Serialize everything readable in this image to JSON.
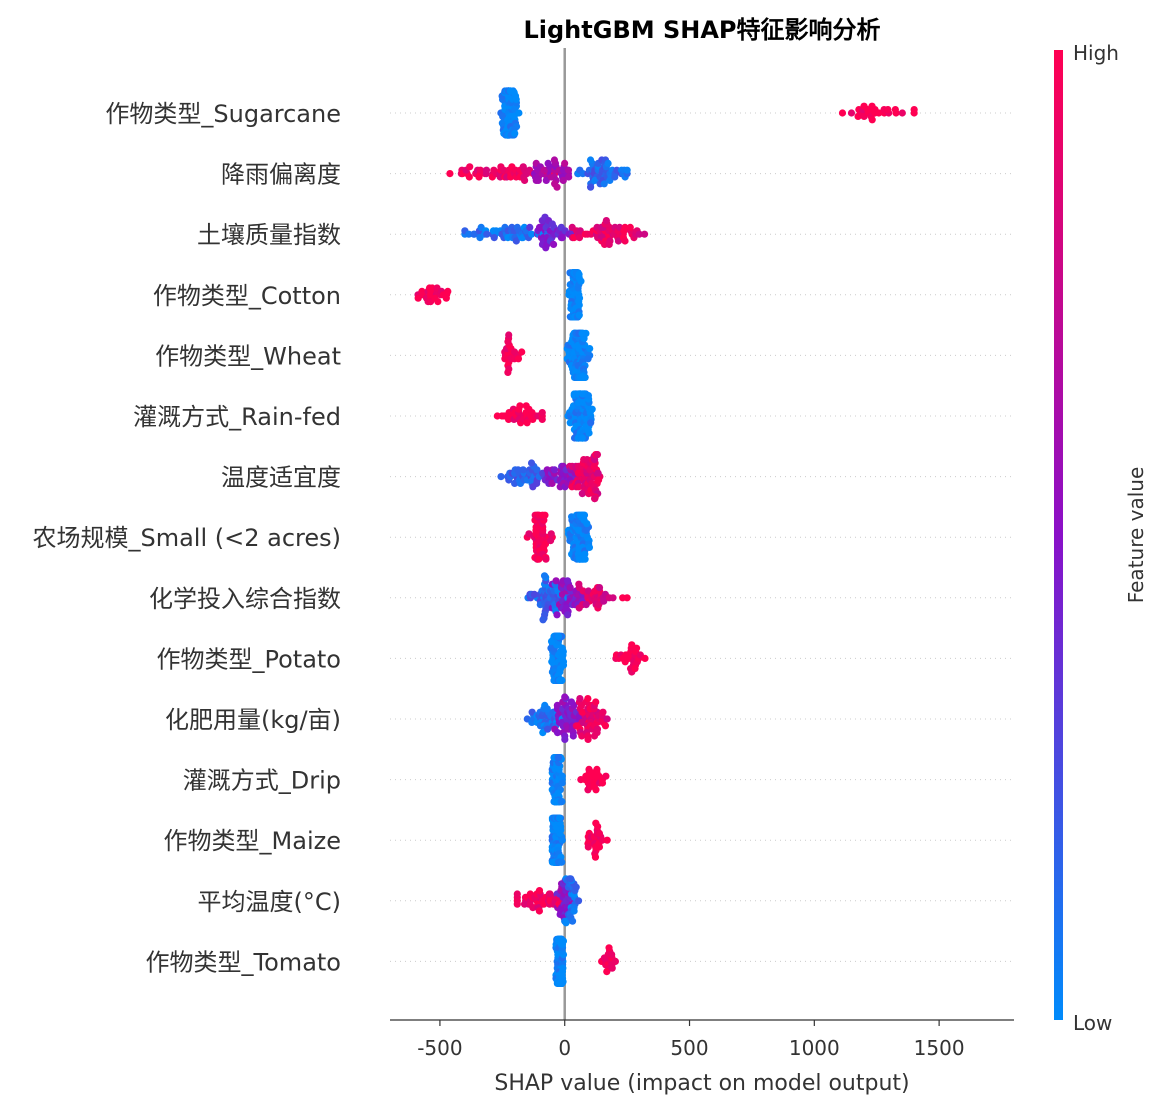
{
  "chart_data": {
    "type": "scatter",
    "subtype": "shap-beeswarm",
    "title": "LightGBM SHAP特征影响分析",
    "xlabel": "SHAP value (impact on model output)",
    "ylabel": "",
    "xlim": [
      -700,
      1800
    ],
    "xticks": [
      -500,
      0,
      500,
      1000,
      1500
    ],
    "xtick_labels": [
      "-500",
      "0",
      "500",
      "1000",
      "1500"
    ],
    "zero_line": 0,
    "grid": false,
    "colorbar": {
      "label": "Feature value",
      "high_label": "High",
      "low_label": "Low",
      "high_color": "#ff0052",
      "mid_color": "#8a10c8",
      "low_color": "#008bfb",
      "placement": "right"
    },
    "features": [
      {
        "name": "作物类型_Sugarcane",
        "clusters": [
          {
            "center": -220,
            "spread": 40,
            "n": 90,
            "color_value": 0
          },
          {
            "center": 1240,
            "spread": 160,
            "n": 28,
            "color_value": 1
          }
        ]
      },
      {
        "name": "降雨偏离度",
        "clusters": [
          {
            "center": -250,
            "spread": 210,
            "n": 50,
            "color_value": 0.95
          },
          {
            "center": -60,
            "spread": 110,
            "n": 40,
            "color_value": 0.6
          },
          {
            "center": 150,
            "spread": 100,
            "n": 55,
            "color_value": 0.15
          }
        ]
      },
      {
        "name": "土壤质量指数",
        "clusters": [
          {
            "center": -210,
            "spread": 190,
            "n": 50,
            "color_value": 0.1
          },
          {
            "center": -50,
            "spread": 90,
            "n": 40,
            "color_value": 0.45
          },
          {
            "center": 180,
            "spread": 150,
            "n": 60,
            "color_value": 0.9
          }
        ]
      },
      {
        "name": "作物类型_Cotton",
        "clusters": [
          {
            "center": -530,
            "spread": 70,
            "n": 25,
            "color_value": 1
          },
          {
            "center": 40,
            "spread": 25,
            "n": 110,
            "color_value": 0
          }
        ]
      },
      {
        "name": "作物类型_Wheat",
        "clusters": [
          {
            "center": -220,
            "spread": 50,
            "n": 25,
            "color_value": 1
          },
          {
            "center": 55,
            "spread": 45,
            "n": 110,
            "color_value": 0
          }
        ]
      },
      {
        "name": "灌溉方式_Rain-fed",
        "clusters": [
          {
            "center": -180,
            "spread": 90,
            "n": 35,
            "color_value": 1
          },
          {
            "center": 60,
            "spread": 50,
            "n": 110,
            "color_value": 0
          }
        ]
      },
      {
        "name": "温度适宜度",
        "clusters": [
          {
            "center": -150,
            "spread": 110,
            "n": 40,
            "color_value": 0.2
          },
          {
            "center": -20,
            "spread": 80,
            "n": 40,
            "color_value": 0.5
          },
          {
            "center": 90,
            "spread": 70,
            "n": 70,
            "color_value": 0.9
          }
        ]
      },
      {
        "name": "农场规模_Small (<2 acres)",
        "clusters": [
          {
            "center": -100,
            "spread": 50,
            "n": 55,
            "color_value": 1
          },
          {
            "center": 60,
            "spread": 45,
            "n": 80,
            "color_value": 0
          }
        ]
      },
      {
        "name": "化学投入综合指数",
        "clusters": [
          {
            "center": -70,
            "spread": 90,
            "n": 55,
            "color_value": 0.15
          },
          {
            "center": 20,
            "spread": 70,
            "n": 45,
            "color_value": 0.5
          },
          {
            "center": 110,
            "spread": 90,
            "n": 30,
            "color_value": 0.85
          },
          {
            "center": 240,
            "spread": 10,
            "n": 2,
            "color_value": 0.95
          }
        ]
      },
      {
        "name": "作物类型_Potato",
        "clusters": [
          {
            "center": -30,
            "spread": 25,
            "n": 110,
            "color_value": 0
          },
          {
            "center": 270,
            "spread": 70,
            "n": 28,
            "color_value": 1
          }
        ]
      },
      {
        "name": "化肥用量(kg/亩)",
        "clusters": [
          {
            "center": -80,
            "spread": 70,
            "n": 40,
            "color_value": 0.1
          },
          {
            "center": 10,
            "spread": 50,
            "n": 45,
            "color_value": 0.5
          },
          {
            "center": 100,
            "spread": 70,
            "n": 55,
            "color_value": 0.9
          }
        ]
      },
      {
        "name": "灌溉方式_Drip",
        "clusters": [
          {
            "center": -30,
            "spread": 20,
            "n": 115,
            "color_value": 0
          },
          {
            "center": 120,
            "spread": 60,
            "n": 28,
            "color_value": 1
          }
        ]
      },
      {
        "name": "作物类型_Maize",
        "clusters": [
          {
            "center": -30,
            "spread": 20,
            "n": 115,
            "color_value": 0
          },
          {
            "center": 125,
            "spread": 45,
            "n": 26,
            "color_value": 1
          }
        ]
      },
      {
        "name": "平均温度(°C)",
        "clusters": [
          {
            "center": -100,
            "spread": 90,
            "n": 45,
            "color_value": 0.95
          },
          {
            "center": 0,
            "spread": 40,
            "n": 30,
            "color_value": 0.5
          },
          {
            "center": 30,
            "spread": 30,
            "n": 30,
            "color_value": 0.1
          }
        ]
      },
      {
        "name": "作物类型_Tomato",
        "clusters": [
          {
            "center": -20,
            "spread": 15,
            "n": 115,
            "color_value": 0
          },
          {
            "center": 180,
            "spread": 40,
            "n": 18,
            "color_value": 1
          }
        ]
      }
    ]
  }
}
